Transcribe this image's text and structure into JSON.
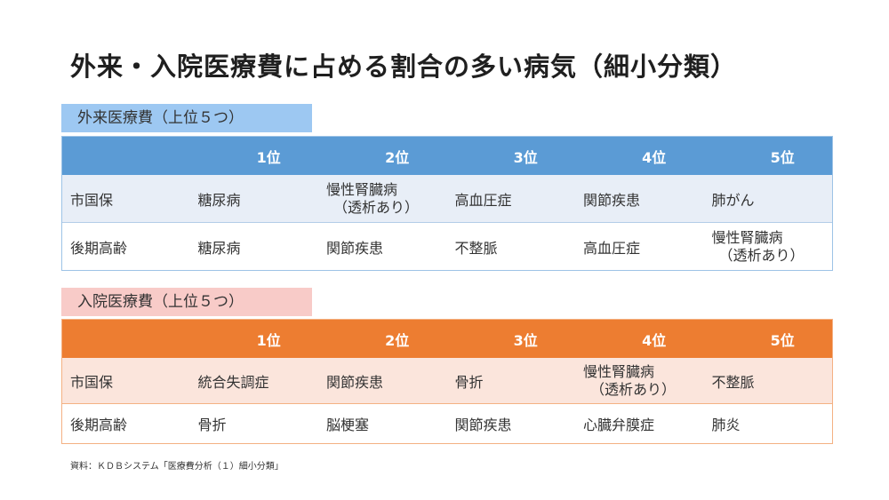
{
  "title": "外来・入院医療費に占める割合の多い病気（細小分類）",
  "outpatient": {
    "label": "外来医療費（上位５つ）",
    "headers": [
      "",
      "1位",
      "2位",
      "3位",
      "4位",
      "5位"
    ],
    "rows": [
      {
        "category": "市国保",
        "cells": [
          [
            "糖尿病"
          ],
          [
            "慢性腎臓病",
            "（透析あり）"
          ],
          [
            "高血圧症"
          ],
          [
            "関節疾患"
          ],
          [
            "肺がん"
          ]
        ]
      },
      {
        "category": "後期高齢",
        "cells": [
          [
            "糖尿病"
          ],
          [
            "関節疾患"
          ],
          [
            "不整脈"
          ],
          [
            "高血圧症"
          ],
          [
            "慢性腎臓病",
            "（透析あり）"
          ]
        ]
      }
    ]
  },
  "inpatient": {
    "label": "入院医療費（上位５つ）",
    "headers": [
      "",
      "1位",
      "2位",
      "3位",
      "4位",
      "5位"
    ],
    "rows": [
      {
        "category": "市国保",
        "cells": [
          [
            "統合失調症"
          ],
          [
            "関節疾患"
          ],
          [
            "骨折"
          ],
          [
            "慢性腎臓病",
            "（透析あり）"
          ],
          [
            "不整脈"
          ]
        ]
      },
      {
        "category": "後期高齢",
        "cells": [
          [
            "骨折"
          ],
          [
            "脳梗塞"
          ],
          [
            "関節疾患"
          ],
          [
            "心臓弁膜症"
          ],
          [
            "肺炎"
          ]
        ]
      }
    ]
  },
  "source": "資料：ＫＤＢシステム「医療費分析（１）細小分類」",
  "colors": {
    "outpatient_header": "#5b9bd5",
    "outpatient_label": "#9dc8f2",
    "inpatient_header": "#ed7d31",
    "inpatient_label": "#f8cbc8"
  }
}
